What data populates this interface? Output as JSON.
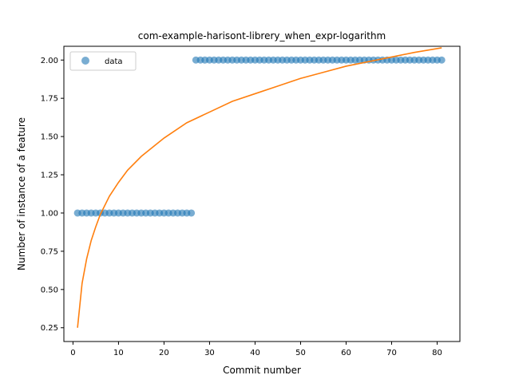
{
  "chart_data": {
    "type": "scatter",
    "title": "com-example-harisont-librery_when_expr-logarithm",
    "xlabel": "Commit number",
    "ylabel": "Number of instance of a feature",
    "xlim": [
      -2.0,
      85.0
    ],
    "ylim": [
      0.16,
      2.09
    ],
    "xticks": [
      0,
      10,
      20,
      30,
      40,
      50,
      60,
      70,
      80
    ],
    "yticks": [
      0.25,
      0.5,
      0.75,
      1.0,
      1.25,
      1.5,
      1.75,
      2.0
    ],
    "xtick_labels": [
      "0",
      "10",
      "20",
      "30",
      "40",
      "50",
      "60",
      "70",
      "80"
    ],
    "ytick_labels": [
      "0.25",
      "0.50",
      "0.75",
      "1.00",
      "1.25",
      "1.50",
      "1.75",
      "2.00"
    ],
    "grid": false,
    "legend_placement": "top-left",
    "series": [
      {
        "name": "data",
        "kind": "scatter",
        "color": "#1f77b4",
        "x": [
          1,
          2,
          3,
          4,
          5,
          6,
          7,
          8,
          9,
          10,
          11,
          12,
          13,
          14,
          15,
          16,
          17,
          18,
          19,
          20,
          21,
          22,
          23,
          24,
          25,
          26,
          27,
          28,
          29,
          30,
          31,
          32,
          33,
          34,
          35,
          36,
          37,
          38,
          39,
          40,
          41,
          42,
          43,
          44,
          45,
          46,
          47,
          48,
          49,
          50,
          51,
          52,
          53,
          54,
          55,
          56,
          57,
          58,
          59,
          60,
          61,
          62,
          63,
          64,
          65,
          66,
          67,
          68,
          69,
          70,
          71,
          72,
          73,
          74,
          75,
          76,
          77,
          78,
          79,
          80,
          81
        ],
        "y": [
          1,
          1,
          1,
          1,
          1,
          1,
          1,
          1,
          1,
          1,
          1,
          1,
          1,
          1,
          1,
          1,
          1,
          1,
          1,
          1,
          1,
          1,
          1,
          1,
          1,
          1,
          2,
          2,
          2,
          2,
          2,
          2,
          2,
          2,
          2,
          2,
          2,
          2,
          2,
          2,
          2,
          2,
          2,
          2,
          2,
          2,
          2,
          2,
          2,
          2,
          2,
          2,
          2,
          2,
          2,
          2,
          2,
          2,
          2,
          2,
          2,
          2,
          2,
          2,
          2,
          2,
          2,
          2,
          2,
          2,
          2,
          2,
          2,
          2,
          2,
          2,
          2,
          2,
          2,
          2,
          2
        ]
      },
      {
        "kind": "line",
        "color": "#ff7f0e",
        "x": [
          1,
          2,
          3,
          4,
          5,
          6,
          8,
          10,
          12,
          15,
          20,
          25,
          30,
          35,
          40,
          45,
          50,
          55,
          60,
          65,
          70,
          75,
          81
        ],
        "y": [
          0.25,
          0.54,
          0.7,
          0.82,
          0.91,
          0.99,
          1.11,
          1.2,
          1.28,
          1.37,
          1.49,
          1.59,
          1.66,
          1.73,
          1.78,
          1.83,
          1.88,
          1.92,
          1.96,
          1.99,
          2.02,
          2.05,
          2.08
        ]
      }
    ]
  }
}
